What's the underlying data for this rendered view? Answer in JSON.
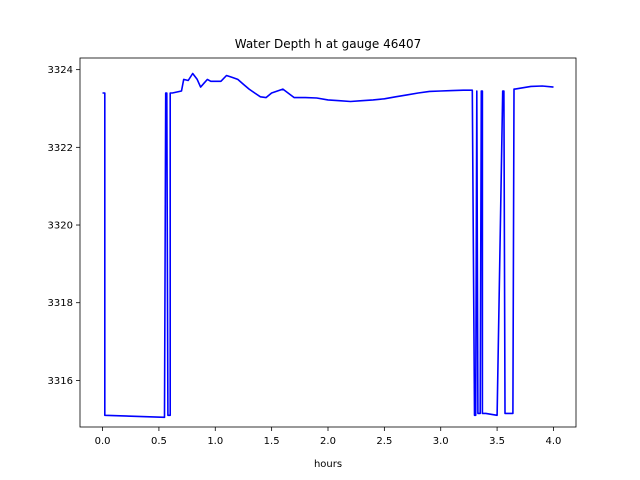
{
  "chart_data": {
    "type": "line",
    "title": "Water Depth h at gauge 46407",
    "xlabel": "hours",
    "ylabel": "",
    "xlim": [
      -0.2,
      4.2
    ],
    "ylim": [
      3314.8,
      3324.3
    ],
    "xticks": [
      0.0,
      0.5,
      1.0,
      1.5,
      2.0,
      2.5,
      3.0,
      3.5,
      4.0
    ],
    "xtick_labels": [
      "0.0",
      "0.5",
      "1.0",
      "1.5",
      "2.0",
      "2.5",
      "3.0",
      "3.5",
      "4.0"
    ],
    "yticks": [
      3316,
      3318,
      3320,
      3322,
      3324
    ],
    "ytick_labels": [
      "3316",
      "3318",
      "3320",
      "3322",
      "3324"
    ],
    "grid": false,
    "series": [
      {
        "name": "",
        "color": "#0000ff",
        "x": [
          0.0,
          0.02,
          0.02,
          0.55,
          0.56,
          0.57,
          0.58,
          0.6,
          0.6,
          0.62,
          0.7,
          0.72,
          0.76,
          0.8,
          0.84,
          0.87,
          0.9,
          0.93,
          0.96,
          1.0,
          1.05,
          1.1,
          1.15,
          1.2,
          1.25,
          1.3,
          1.35,
          1.4,
          1.45,
          1.5,
          1.6,
          1.7,
          1.8,
          1.9,
          2.0,
          2.1,
          2.2,
          2.3,
          2.4,
          2.5,
          2.6,
          2.7,
          2.8,
          2.9,
          3.0,
          3.1,
          3.2,
          3.28,
          3.3,
          3.31,
          3.32,
          3.32,
          3.33,
          3.35,
          3.36,
          3.37,
          3.37,
          3.39,
          3.4,
          3.5,
          3.55,
          3.56,
          3.57,
          3.64,
          3.65,
          3.66,
          3.7,
          3.8,
          3.9,
          4.0
        ],
        "y": [
          3323.4,
          3323.4,
          3315.1,
          3315.05,
          3323.4,
          3323.4,
          3315.1,
          3315.1,
          3323.4,
          3323.4,
          3323.45,
          3323.75,
          3323.72,
          3323.9,
          3323.75,
          3323.55,
          3323.65,
          3323.75,
          3323.7,
          3323.7,
          3323.7,
          3323.85,
          3323.8,
          3323.75,
          3323.62,
          3323.5,
          3323.4,
          3323.3,
          3323.28,
          3323.4,
          3323.5,
          3323.28,
          3323.28,
          3323.27,
          3323.22,
          3323.2,
          3323.18,
          3323.2,
          3323.22,
          3323.25,
          3323.3,
          3323.35,
          3323.4,
          3323.44,
          3323.45,
          3323.46,
          3323.47,
          3323.47,
          3315.1,
          3315.1,
          3323.45,
          3323.45,
          3315.15,
          3315.15,
          3323.45,
          3323.45,
          3315.15,
          3315.15,
          3315.15,
          3315.1,
          3323.45,
          3323.45,
          3315.15,
          3315.15,
          3323.5,
          3323.5,
          3323.52,
          3323.57,
          3323.58,
          3323.55
        ]
      }
    ]
  }
}
